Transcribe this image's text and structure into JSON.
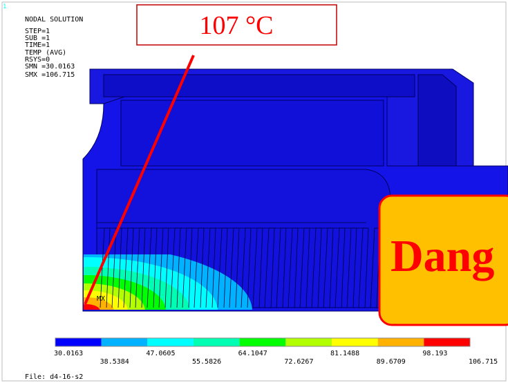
{
  "window_number": "1",
  "header": [
    "NODAL SOLUTION",
    "STEP=1",
    "SUB =1",
    "TIME=1",
    "TEMP      (AVG)",
    "RSYS=0",
    "SMN =30.0163",
    "SMX =106.715"
  ],
  "legend": [
    "30.0163",
    "38.5384",
    "47.0605",
    "55.5826",
    "64.1047",
    "72.6267",
    "81.1488",
    "89.6709",
    "98.193",
    "106.715"
  ],
  "max_label": "MX",
  "callout": "107 °C",
  "warning": "Dang",
  "file": "File: d4-16-s2"
}
